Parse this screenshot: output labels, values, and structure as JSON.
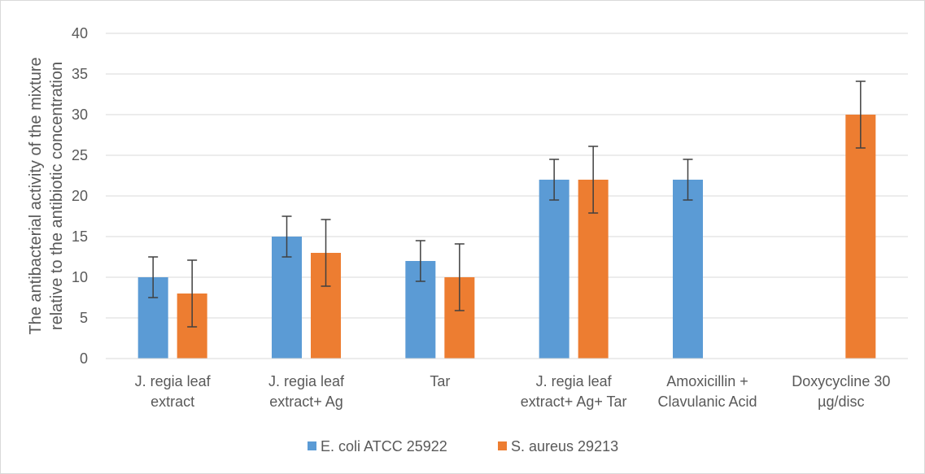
{
  "chart_data": {
    "type": "bar",
    "title": "",
    "ylabel_lines": [
      "The antibacterial activity of the mixture",
      "relative to the antibiotic concentration"
    ],
    "xlabel": "",
    "categories": [
      [
        "J. regia leaf",
        "extract"
      ],
      [
        "J. regia leaf",
        "extract+ Ag"
      ],
      [
        "Tar"
      ],
      [
        "J. regia leaf",
        "extract+ Ag+ Tar"
      ],
      [
        "Amoxicillin +",
        "Clavulanic Acid"
      ],
      [
        "Doxycycline 30",
        "µg/disc"
      ]
    ],
    "series": [
      {
        "name": "E. coli ATCC 25922",
        "color": "#5b9bd5",
        "values": [
          10,
          15,
          12,
          22,
          22,
          null
        ],
        "errors": [
          2.5,
          2.5,
          2.5,
          2.5,
          2.5,
          null
        ]
      },
      {
        "name": "S. aureus 29213",
        "color": "#ed7d31",
        "values": [
          8,
          13,
          10,
          22,
          null,
          30
        ],
        "errors": [
          4.1,
          4.1,
          4.1,
          4.1,
          null,
          4.1
        ]
      }
    ],
    "ylim": [
      0,
      40
    ],
    "yticks": [
      0,
      5,
      10,
      15,
      20,
      25,
      30,
      35,
      40
    ],
    "grid": true,
    "gridColor": "#d9d9d9",
    "errorBarColor": "#404040",
    "legend_position": "bottom"
  }
}
